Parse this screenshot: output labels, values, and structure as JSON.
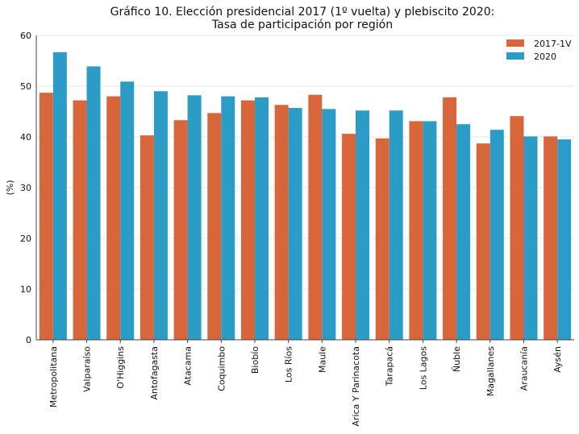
{
  "chart_data": {
    "type": "bar",
    "title_lines": [
      "Gráfico 10. Elección presidencial 2017 (1º vuelta) y plebiscito 2020:",
      "Tasa de participación por región"
    ],
    "ylabel": "(%)",
    "xlabel": "",
    "ylim": [
      0,
      60
    ],
    "yticks": [
      0,
      10,
      20,
      30,
      40,
      50,
      60
    ],
    "grid": "horizontal",
    "legend_position": "top-right",
    "categories": [
      "Metropolitana",
      "Valparaíso",
      "O'Higgins",
      "Antofagasta",
      "Atacama",
      "Coquimbo",
      "Biobío",
      "Los Ríos",
      "Maule",
      "Arica Y Parinacota",
      "Tarapacá",
      "Los Lagos",
      "Ñuble",
      "Magallanes",
      "Araucanía",
      "Aysén"
    ],
    "series": [
      {
        "name": "2017-1V",
        "color": "#D9653B",
        "values": [
          48.7,
          47.2,
          48.0,
          40.3,
          43.3,
          44.7,
          47.2,
          46.3,
          48.3,
          40.6,
          39.7,
          43.1,
          47.8,
          38.7,
          44.1,
          40.1
        ]
      },
      {
        "name": "2020",
        "color": "#2A9CC6",
        "values": [
          56.7,
          53.9,
          50.9,
          49.0,
          48.2,
          48.0,
          47.8,
          45.7,
          45.5,
          45.2,
          45.2,
          43.1,
          42.5,
          41.4,
          40.1,
          39.5
        ]
      }
    ]
  }
}
